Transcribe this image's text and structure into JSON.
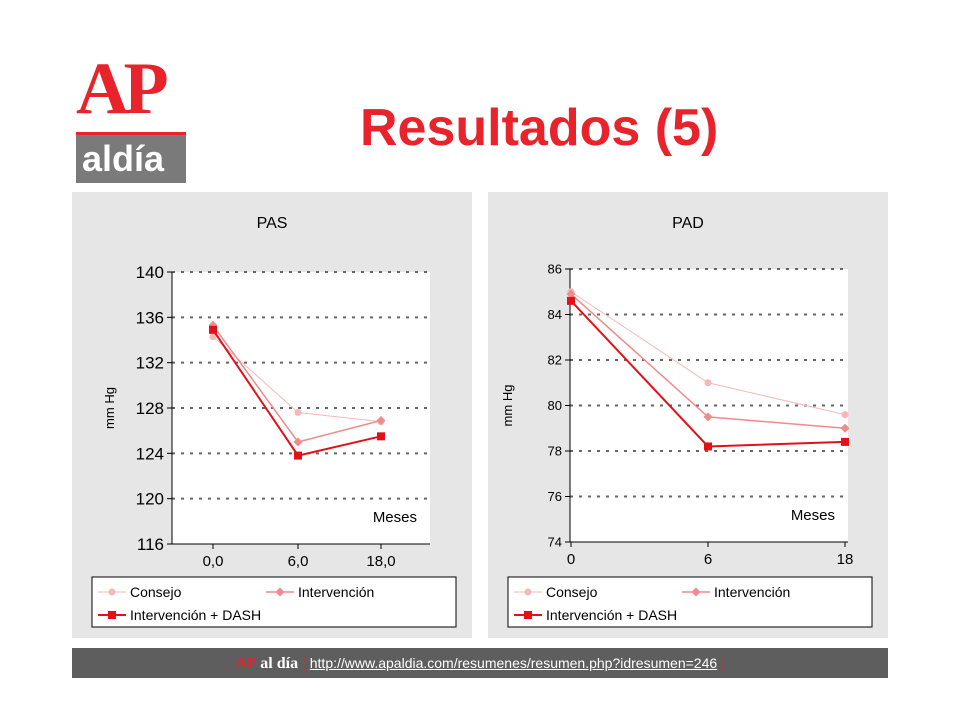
{
  "logo": {
    "main": "AP",
    "sub": "aldía"
  },
  "title": "Resultados (5)",
  "colors": {
    "consejo": "#f4b8b8",
    "intervencion": "#ee8c8c",
    "dash": "#e3101a",
    "accent": "#e8232b"
  },
  "chart_data": [
    {
      "type": "line",
      "title": "PAS",
      "ylabel": "mm Hg",
      "xlabel": "Meses",
      "categories": [
        "0,0",
        "6,0",
        "18,0"
      ],
      "ylim": [
        116,
        140
      ],
      "yticks": [
        "116",
        "120",
        "124",
        "128",
        "132",
        "136",
        "140"
      ],
      "grid": true,
      "legend_position": "bottom",
      "series": [
        {
          "name": "Consejo",
          "values": [
            134.3,
            127.6,
            126.8
          ],
          "marker": "circle"
        },
        {
          "name": "Intervención",
          "values": [
            135.3,
            125.0,
            126.9
          ],
          "marker": "diamond"
        },
        {
          "name": "Intervención + DASH",
          "values": [
            134.9,
            123.8,
            125.5
          ],
          "marker": "square"
        }
      ]
    },
    {
      "type": "line",
      "title": "PAD",
      "ylabel": "mm Hg",
      "xlabel": "Meses",
      "categories": [
        "0",
        "6",
        "18"
      ],
      "ylim": [
        74,
        86
      ],
      "yticks": [
        "74",
        "76",
        "78",
        "80",
        "82",
        "84",
        "86"
      ],
      "grid": true,
      "legend_position": "bottom",
      "series": [
        {
          "name": "Consejo",
          "values": [
            85.0,
            81.0,
            79.6
          ],
          "marker": "circle"
        },
        {
          "name": "Intervención",
          "values": [
            84.9,
            79.5,
            79.0
          ],
          "marker": "diamond"
        },
        {
          "name": "Intervención + DASH",
          "values": [
            84.6,
            78.2,
            78.4
          ],
          "marker": "square"
        }
      ]
    }
  ],
  "footer": {
    "ap": "AP",
    "brand": "al día",
    "bracket_open": "[",
    "url": "http://www.apaldia.com/resumenes/resumen.php?idresumen=246",
    "bracket_close": "]"
  }
}
